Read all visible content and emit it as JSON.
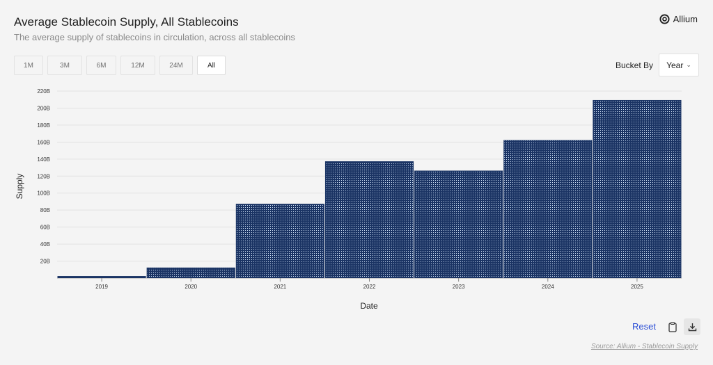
{
  "header": {
    "title": "Average Stablecoin Supply, All Stablecoins",
    "subtitle": "The average supply of stablecoins in circulation, across all stablecoins",
    "brand": "Allium"
  },
  "controls": {
    "ranges": [
      {
        "label": "1M",
        "active": false
      },
      {
        "label": "3M",
        "active": false
      },
      {
        "label": "6M",
        "active": false
      },
      {
        "label": "12M",
        "active": false
      },
      {
        "label": "24M",
        "active": false
      },
      {
        "label": "All",
        "active": true
      }
    ],
    "bucket_label": "Bucket By",
    "bucket_value": "Year"
  },
  "footer": {
    "reset_label": "Reset",
    "source": "Source: Allium - Stablecoin Supply"
  },
  "colors": {
    "bar_fill": "#1b3464",
    "bar_dot": "#cfe0f5",
    "grid": "#e2e2e2"
  },
  "chart_data": {
    "type": "bar",
    "categories": [
      "2019",
      "2020",
      "2021",
      "2022",
      "2023",
      "2024",
      "2025"
    ],
    "values": [
      2,
      12,
      87,
      137,
      126,
      162,
      209
    ],
    "xlabel": "Date",
    "ylabel": "Supply",
    "ylim": [
      0,
      220
    ],
    "yticks": [
      {
        "value": 20,
        "label": "20B"
      },
      {
        "value": 40,
        "label": "40B"
      },
      {
        "value": 60,
        "label": "60B"
      },
      {
        "value": 80,
        "label": "80B"
      },
      {
        "value": 100,
        "label": "100B"
      },
      {
        "value": 120,
        "label": "120B"
      },
      {
        "value": 140,
        "label": "140B"
      },
      {
        "value": 160,
        "label": "160B"
      },
      {
        "value": 180,
        "label": "180B"
      },
      {
        "value": 200,
        "label": "200B"
      },
      {
        "value": 220,
        "label": "220B"
      }
    ],
    "grid": true,
    "legend": "none"
  }
}
